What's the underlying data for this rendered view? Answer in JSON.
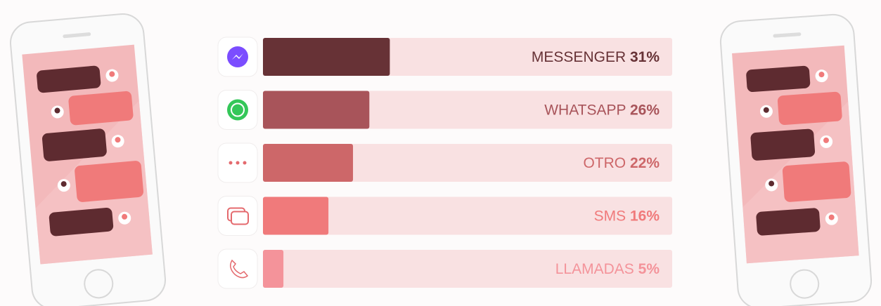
{
  "chart_data": {
    "type": "bar",
    "categories": [
      "MESSENGER",
      "WHATSAPP",
      "OTRO",
      "SMS",
      "LLAMADAS"
    ],
    "values": [
      31,
      26,
      22,
      16,
      5
    ],
    "value_labels": [
      "31%",
      "26%",
      "22%",
      "16%",
      "5%"
    ],
    "colors": [
      "#673236",
      "#a8545a",
      "#cd6769",
      "#f07a7b",
      "#f4939a"
    ],
    "track_color": "#f9e1e2",
    "xlim": [
      0,
      100
    ]
  }
}
